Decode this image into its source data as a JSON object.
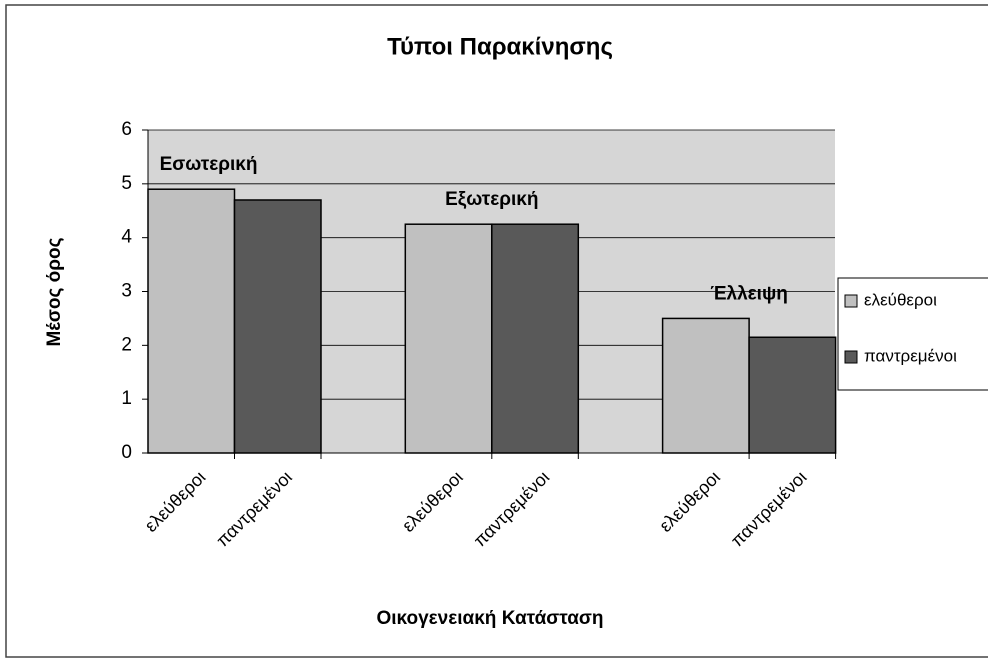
{
  "chart_data": {
    "type": "bar",
    "title": "Τύποι Παρακίνησης",
    "x_label": "Οικογενειακή Κατάσταση",
    "y_label": "Μέσος όρος",
    "categories": [
      "Εσωτερική",
      "Εξωτερική",
      "Έλλειψη"
    ],
    "series": [
      {
        "name": "ελεύθεροι",
        "color": "#c0c0c0",
        "values": [
          4.9,
          4.25,
          2.5
        ]
      },
      {
        "name": "παντρεμένοι",
        "color": "#595959",
        "values": [
          4.7,
          4.25,
          2.15
        ]
      }
    ],
    "ylim": [
      0,
      6
    ],
    "yticks": [
      0,
      1,
      2,
      3,
      4,
      5,
      6
    ],
    "grid": true,
    "legend": "right"
  }
}
